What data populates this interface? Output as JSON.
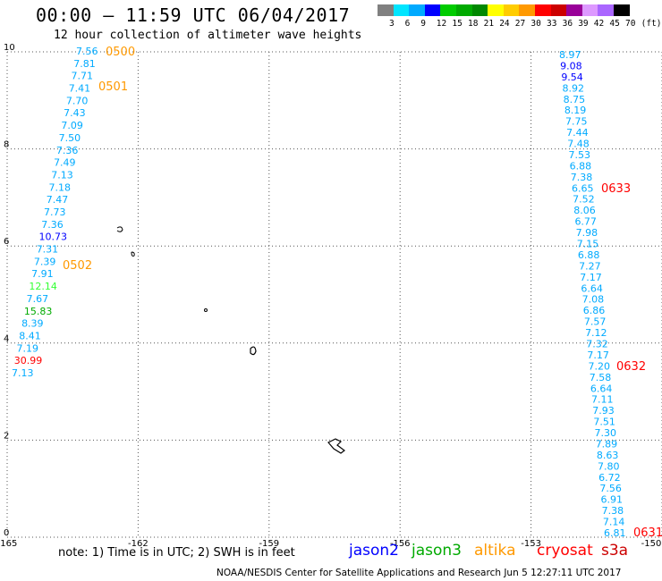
{
  "header": {
    "title": "00:00 – 11:59 UTC 06/04/2017",
    "subtitle": "12 hour collection of altimeter wave heights"
  },
  "legend": {
    "colors": [
      "#808080",
      "#00e5ff",
      "#00aaff",
      "#0000ff",
      "#00cc00",
      "#00aa00",
      "#008800",
      "#ffff00",
      "#ffcc00",
      "#ff9900",
      "#ff0000",
      "#cc0000",
      "#990099",
      "#dd99ff",
      "#aa66ff",
      "#000000"
    ],
    "labels": [
      "3",
      "6",
      "9",
      "12",
      "15",
      "18",
      "21",
      "24",
      "27",
      "30",
      "33",
      "36",
      "39",
      "42",
      "45",
      "70",
      "(ft)"
    ]
  },
  "map": {
    "xlim": [
      -165,
      -150
    ],
    "ylim": [
      0,
      10
    ],
    "x_ticks": [
      "-165",
      "-162",
      "-159",
      "-156",
      "-153",
      "-150"
    ],
    "y_ticks": [
      "0",
      "2",
      "4",
      "6",
      "8",
      "10"
    ]
  },
  "chart_data": {
    "type": "scatter",
    "track_labels": [
      {
        "text": "0500",
        "color": "#ff9900"
      },
      {
        "text": "0501",
        "color": "#ff9900"
      },
      {
        "text": "0502",
        "color": "#ff9900"
      },
      {
        "text": "0633",
        "color": "#ff0000"
      },
      {
        "text": "0632",
        "color": "#ff0000"
      },
      {
        "text": "0631",
        "color": "#ff0000"
      }
    ],
    "left_track": {
      "values": [
        "7.56",
        "7.81",
        "7.71",
        "7.41",
        "7.70",
        "7.43",
        "7.09",
        "7.50",
        "7.36",
        "7.49",
        "7.13",
        "7.18",
        "7.47",
        "7.73",
        "7.36",
        "10.73",
        "7.31",
        "7.39",
        "7.91",
        "12.14",
        "7.67",
        "15.83",
        "8.39",
        "8.41",
        "7.19",
        "30.99",
        "7.13"
      ],
      "colors": [
        "#00aaff",
        "#00aaff",
        "#00aaff",
        "#00aaff",
        "#00aaff",
        "#00aaff",
        "#00aaff",
        "#00aaff",
        "#00aaff",
        "#00aaff",
        "#00aaff",
        "#00aaff",
        "#00aaff",
        "#00aaff",
        "#00aaff",
        "#0000ff",
        "#00aaff",
        "#00aaff",
        "#00aaff",
        "#33ff33",
        "#00aaff",
        "#00aa00",
        "#00aaff",
        "#00aaff",
        "#00aaff",
        "#ff0000",
        "#00aaff"
      ]
    },
    "right_track": {
      "values": [
        "8.97",
        "9.08",
        "9.54",
        "8.92",
        "8.75",
        "8.19",
        "7.75",
        "7.44",
        "7.48",
        "7.53",
        "6.88",
        "7.38",
        "6.65",
        "7.52",
        "8.06",
        "6.77",
        "7.98",
        "7.15",
        "6.88",
        "7.27",
        "7.17",
        "6.64",
        "7.08",
        "6.86",
        "7.57",
        "7.12",
        "7.32",
        "7.17",
        "7.20",
        "7.58",
        "6.64",
        "7.11",
        "7.93",
        "7.51",
        "7.30",
        "7.89",
        "8.63",
        "7.80",
        "6.72",
        "7.56",
        "6.91",
        "7.38",
        "7.14",
        "6.81"
      ],
      "colors": [
        "#00aaff",
        "#0000ff",
        "#0000ff",
        "#00aaff",
        "#00aaff",
        "#00aaff",
        "#00aaff",
        "#00aaff",
        "#00aaff",
        "#00aaff",
        "#00aaff",
        "#00aaff",
        "#00aaff",
        "#00aaff",
        "#00aaff",
        "#00aaff",
        "#00aaff",
        "#00aaff",
        "#00aaff",
        "#00aaff",
        "#00aaff",
        "#00aaff",
        "#00aaff",
        "#00aaff",
        "#00aaff",
        "#00aaff",
        "#00aaff",
        "#00aaff",
        "#00aaff",
        "#00aaff",
        "#00aaff",
        "#00aaff",
        "#00aaff",
        "#00aaff",
        "#00aaff",
        "#00aaff",
        "#00aaff",
        "#00aaff",
        "#00aaff",
        "#00aaff",
        "#00aaff",
        "#00aaff",
        "#00aaff",
        "#00aaff"
      ]
    }
  },
  "note": "note: 1) Time is in UTC; 2) SWH is in feet",
  "satellites": [
    {
      "name": "jason2",
      "color": "#0000ff"
    },
    {
      "name": "jason3",
      "color": "#00aa00"
    },
    {
      "name": "altika",
      "color": "#ff9900"
    },
    {
      "name": "cryosat",
      "color": "#ff0000"
    },
    {
      "name": "s3a",
      "color": "#cc0000"
    }
  ],
  "footer": "NOAA/NESDIS Center for Satellite Applications and Research   Jun  5 12:27:11 UTC 2017"
}
